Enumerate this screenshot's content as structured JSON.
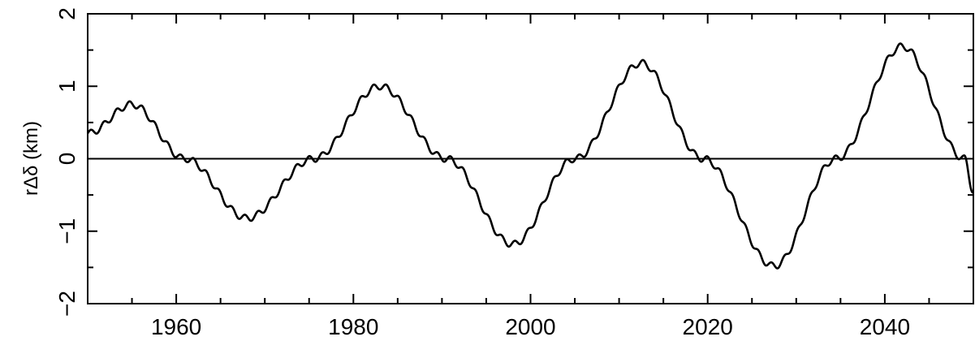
{
  "chart_data": {
    "type": "line",
    "title": "",
    "xlabel": "",
    "ylabel": "rΔδ (km)",
    "xlim": [
      1950,
      2050
    ],
    "ylim": [
      -2,
      2
    ],
    "x_ticks": [
      1960,
      1980,
      2000,
      2020,
      2040
    ],
    "x_tick_labels": [
      "1960",
      "1980",
      "2000",
      "2020",
      "2040"
    ],
    "y_ticks": [
      -2,
      -1,
      0,
      1,
      2
    ],
    "y_tick_labels": [
      "−2",
      "−1",
      "0",
      "1",
      "2"
    ],
    "reference_line_y": 0,
    "grid": false,
    "series": [
      {
        "x": [
          1950,
          1955,
          1961,
          1968,
          1975.5,
          1983,
          1990.5,
          1998,
          2005,
          2012.5,
          2019.5,
          2027.5,
          2034.5,
          2042,
          2049,
          2050
        ],
        "y": [
          0.35,
          0.75,
          0.0,
          -0.82,
          0.0,
          1.0,
          0.0,
          -1.18,
          0.0,
          1.32,
          0.0,
          -1.48,
          0.0,
          1.55,
          0.0,
          -0.45
        ]
      }
    ],
    "line_color": "#000000"
  }
}
